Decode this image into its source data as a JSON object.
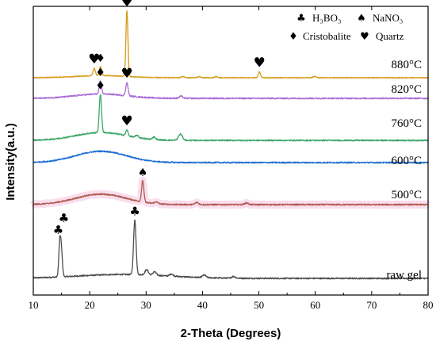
{
  "chart_data": {
    "type": "line",
    "xlabel": "2-Theta (Degrees)",
    "ylabel": "Intensity(a.u.)",
    "xlim": [
      10,
      80
    ],
    "x_ticks": [
      "10",
      "20",
      "30",
      "40",
      "50",
      "60",
      "70",
      "80"
    ],
    "y_ticks_labels_shown": false,
    "legend": {
      "placement": "top-right",
      "items": [
        {
          "symbol": "♣",
          "label": "H₃BO₃",
          "phase": "h3bo3"
        },
        {
          "symbol": "♠",
          "label": "NaNO₃",
          "phase": "nano3"
        },
        {
          "symbol": "♦",
          "label": "Cristobalite",
          "phase": "cristobalite"
        },
        {
          "symbol": "♥",
          "label": "Quartz",
          "phase": "quartz"
        }
      ]
    },
    "series": [
      {
        "name": "raw gel",
        "color": "#4d4d4d",
        "baseline": 0.0,
        "hump": {
          "center": 26,
          "height": 0.09,
          "width": 8
        },
        "peaks": [
          {
            "x": 14.7,
            "height": 0.78,
            "width": 0.18,
            "phase": "h3bo3"
          },
          {
            "x": 15.0,
            "height": 0.52,
            "width": 0.18
          },
          {
            "x": 28.0,
            "height": 1.25,
            "width": 0.22,
            "phase": "h3bo3"
          },
          {
            "x": 30.1,
            "height": 0.12,
            "width": 0.3
          },
          {
            "x": 31.5,
            "height": 0.08,
            "width": 0.3
          },
          {
            "x": 34.5,
            "height": 0.05,
            "width": 0.3
          },
          {
            "x": 40.3,
            "height": 0.06,
            "width": 0.3
          },
          {
            "x": 45.5,
            "height": 0.04,
            "width": 0.3
          }
        ]
      },
      {
        "name": "500°C",
        "color": "#b15a50",
        "baseline": 0.0,
        "hump": {
          "center": 22,
          "height": 0.24,
          "width": 4.5
        },
        "peaks": [
          {
            "x": 29.4,
            "height": 0.48,
            "width": 0.2,
            "phase": "nano3"
          },
          {
            "x": 31.8,
            "height": 0.04,
            "width": 0.3
          },
          {
            "x": 39.0,
            "height": 0.05,
            "width": 0.3
          },
          {
            "x": 47.8,
            "height": 0.04,
            "width": 0.3
          }
        ]
      },
      {
        "name": "600°C",
        "color": "#1f6fd1",
        "baseline": 0.0,
        "hump": {
          "center": 22,
          "height": 0.26,
          "width": 4.5
        },
        "peaks": []
      },
      {
        "name": "760°C",
        "color": "#3ea76a",
        "baseline": 0.0,
        "hump": {
          "center": 22,
          "height": 0.18,
          "width": 4.5
        },
        "peaks": [
          {
            "x": 21.9,
            "height": 0.88,
            "width": 0.2,
            "phase": "cristobalite"
          },
          {
            "x": 26.6,
            "height": 0.13,
            "width": 0.2,
            "phase": "quartz"
          },
          {
            "x": 28.4,
            "height": 0.05,
            "width": 0.25
          },
          {
            "x": 31.4,
            "height": 0.06,
            "width": 0.25
          },
          {
            "x": 36.1,
            "height": 0.14,
            "width": 0.35
          }
        ]
      },
      {
        "name": "820°C",
        "color": "#a96ad6",
        "baseline": 0.0,
        "hump": {
          "center": 22,
          "height": 0.1,
          "width": 4.5
        },
        "peaks": [
          {
            "x": 21.9,
            "height": 0.3,
            "width": 0.2,
            "phase": "cristobalite"
          },
          {
            "x": 26.6,
            "height": 0.3,
            "width": 0.2,
            "phase": "quartz"
          },
          {
            "x": 36.2,
            "height": 0.05,
            "width": 0.3
          }
        ]
      },
      {
        "name": "880°C",
        "color": "#d69a16",
        "baseline": 0.0,
        "hump": {
          "center": 22,
          "height": 0.08,
          "width": 4.5
        },
        "peaks": [
          {
            "x": 20.8,
            "height": 0.28,
            "width": 0.2,
            "phase": "quartz"
          },
          {
            "x": 21.9,
            "height": 0.35,
            "width": 0.2,
            "phase": "cristobalite"
          },
          {
            "x": 26.6,
            "height": 2.5,
            "width": 0.18,
            "phase": "quartz"
          },
          {
            "x": 36.5,
            "height": 0.05,
            "width": 0.25
          },
          {
            "x": 39.4,
            "height": 0.04,
            "width": 0.25
          },
          {
            "x": 42.4,
            "height": 0.04,
            "width": 0.25
          },
          {
            "x": 50.1,
            "height": 0.22,
            "width": 0.2,
            "phase": "quartz"
          },
          {
            "x": 59.9,
            "height": 0.05,
            "width": 0.25
          }
        ]
      }
    ],
    "peak_markers": [
      {
        "series": "raw gel",
        "x": 14.7,
        "symbols": [
          "♣",
          "♣"
        ]
      },
      {
        "series": "raw gel",
        "x": 28.0,
        "symbols": [
          "♣"
        ]
      },
      {
        "series": "500°C",
        "x": 29.4,
        "symbols": [
          "♠"
        ]
      },
      {
        "series": "760°C",
        "x": 21.9,
        "symbols": [
          "♦"
        ]
      },
      {
        "series": "760°C",
        "x": 26.6,
        "symbols": [
          "♥"
        ]
      },
      {
        "series": "820°C",
        "x": 21.9,
        "symbols": [
          "♦"
        ]
      },
      {
        "series": "820°C",
        "x": 26.6,
        "symbols": [
          "♥"
        ]
      },
      {
        "series": "880°C",
        "x": 20.8,
        "symbols": [
          "♥"
        ]
      },
      {
        "series": "880°C",
        "x": 21.9,
        "symbols": [
          "♦"
        ]
      },
      {
        "series": "880°C",
        "x": 26.6,
        "symbols": [
          "♥"
        ]
      },
      {
        "series": "880°C",
        "x": 50.1,
        "symbols": [
          "♥"
        ]
      }
    ],
    "grid": false
  }
}
